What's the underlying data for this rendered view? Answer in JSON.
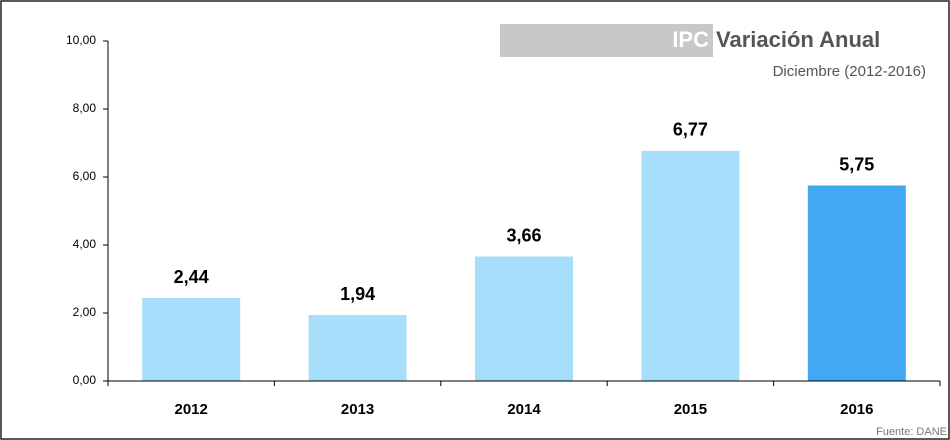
{
  "chart_data": {
    "type": "bar",
    "title_highlight": "IPC",
    "title": "Variación Anual",
    "subtitle": "Diciembre (2012-2016)",
    "source": "Fuente: DANE",
    "categories": [
      "2012",
      "2013",
      "2014",
      "2015",
      "2016"
    ],
    "values": [
      2.44,
      1.94,
      3.66,
      6.77,
      5.75
    ],
    "value_labels": [
      "2,44",
      "1,94",
      "3,66",
      "6,77",
      "5,75"
    ],
    "colors": [
      "#a6defb",
      "#a6defb",
      "#a6defb",
      "#a6defb",
      "#42a8f2"
    ],
    "ylim": [
      0,
      10
    ],
    "yticks": [
      {
        "value": 0,
        "label": "0,00"
      },
      {
        "value": 2,
        "label": "2,00"
      },
      {
        "value": 4,
        "label": "4,00"
      },
      {
        "value": 6,
        "label": "6,00"
      },
      {
        "value": 8,
        "label": "8,00"
      },
      {
        "value": 10,
        "label": "10,00"
      }
    ],
    "grid": false
  }
}
